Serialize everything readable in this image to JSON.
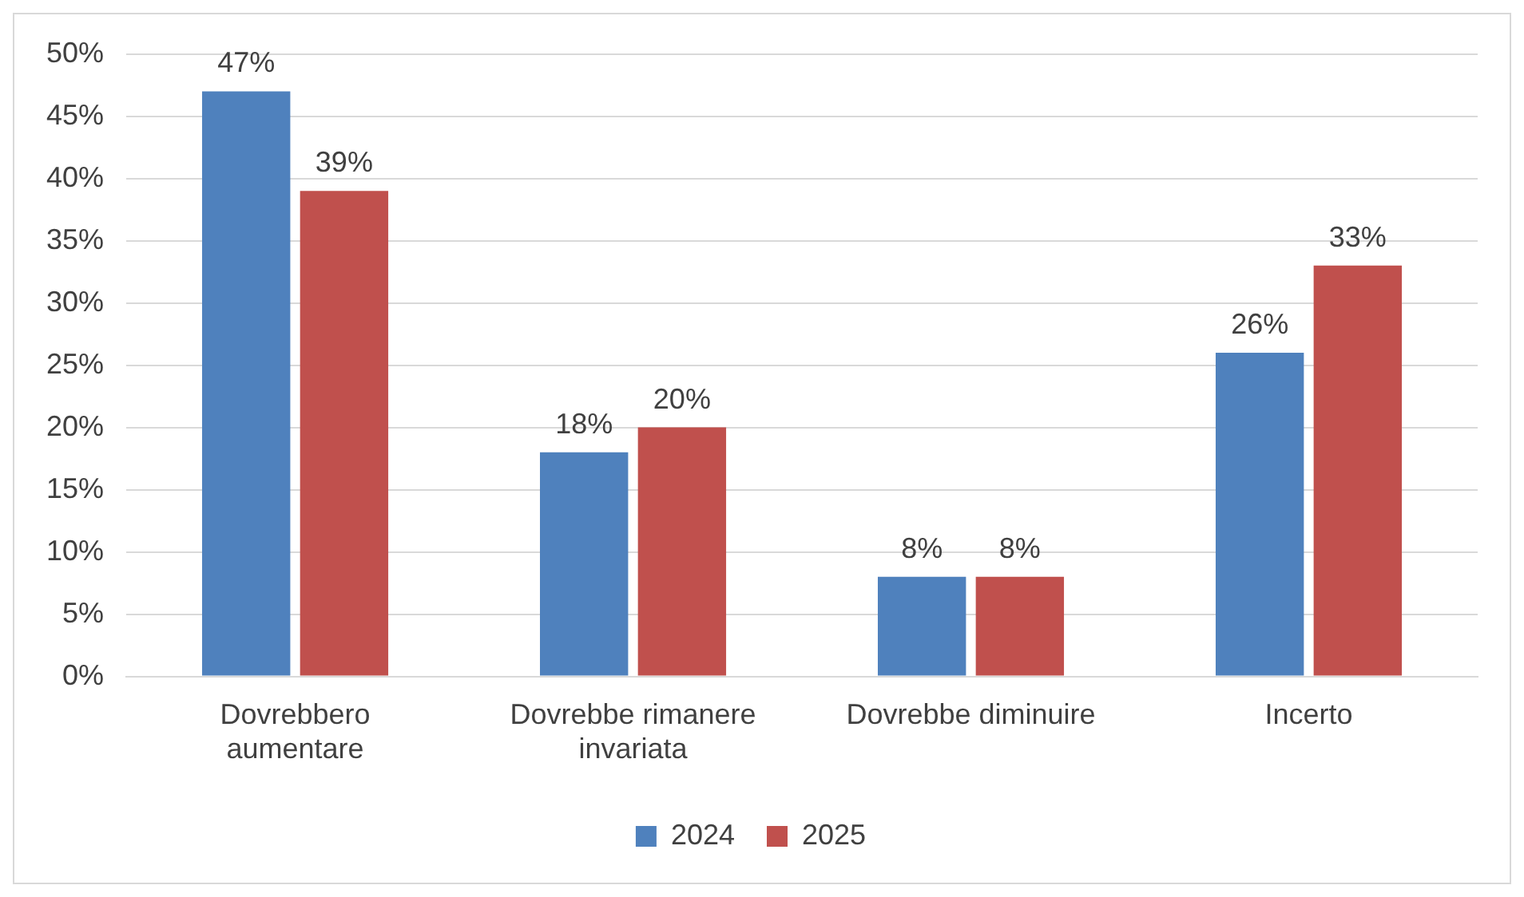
{
  "chart_data": {
    "type": "bar",
    "categories": [
      "Dovrebbero aumentare",
      "Dovrebbe rimanere invariata",
      "Dovrebbe diminuire",
      "Incerto"
    ],
    "series": [
      {
        "name": "2024",
        "color": "#4f81bd",
        "values": [
          47,
          18,
          8,
          26
        ],
        "value_labels": [
          "47%",
          "18%",
          "8%",
          "26%"
        ]
      },
      {
        "name": "2025",
        "color": "#c0504d",
        "values": [
          39,
          20,
          8,
          33
        ],
        "value_labels": [
          "39%",
          "20%",
          "8%",
          "33%"
        ]
      }
    ],
    "ylim": [
      0,
      50
    ],
    "yticks": [
      {
        "value": 0,
        "label": "0%"
      },
      {
        "value": 5,
        "label": "5%"
      },
      {
        "value": 10,
        "label": "10%"
      },
      {
        "value": 15,
        "label": "15%"
      },
      {
        "value": 20,
        "label": "20%"
      },
      {
        "value": 25,
        "label": "25%"
      },
      {
        "value": 30,
        "label": "30%"
      },
      {
        "value": 35,
        "label": "35%"
      },
      {
        "value": 40,
        "label": "40%"
      },
      {
        "value": 45,
        "label": "45%"
      },
      {
        "value": 50,
        "label": "50%"
      }
    ],
    "grid": "y",
    "legend": "bottom"
  }
}
